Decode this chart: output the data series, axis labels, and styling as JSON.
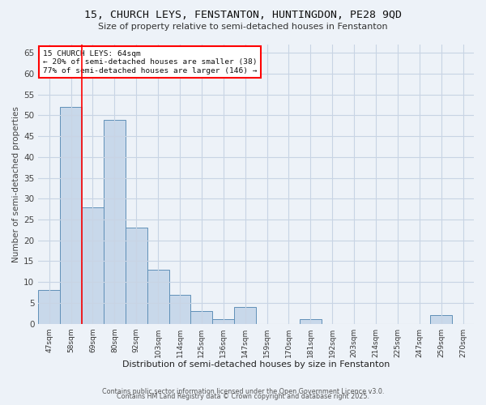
{
  "title1": "15, CHURCH LEYS, FENSTANTON, HUNTINGDON, PE28 9QD",
  "title2": "Size of property relative to semi-detached houses in Fenstanton",
  "xlabel": "Distribution of semi-detached houses by size in Fenstanton",
  "ylabel": "Number of semi-detached properties",
  "bins": [
    "47sqm",
    "58sqm",
    "69sqm",
    "80sqm",
    "92sqm",
    "103sqm",
    "114sqm",
    "125sqm",
    "136sqm",
    "147sqm",
    "159sqm",
    "170sqm",
    "181sqm",
    "192sqm",
    "203sqm",
    "214sqm",
    "225sqm",
    "247sqm",
    "259sqm",
    "270sqm"
  ],
  "values": [
    8,
    52,
    28,
    49,
    23,
    13,
    7,
    3,
    1,
    4,
    0,
    0,
    1,
    0,
    0,
    0,
    0,
    0,
    2,
    0
  ],
  "bar_color": "#c8d8ea",
  "bar_edge_color": "#6090b8",
  "bar_edge_width": 0.7,
  "grid_color": "#c8d4e4",
  "background_color": "#edf2f8",
  "red_line_x": 1.5,
  "annotation_title": "15 CHURCH LEYS: 64sqm",
  "annotation_line1": "← 20% of semi-detached houses are smaller (38)",
  "annotation_line2": "77% of semi-detached houses are larger (146) →",
  "footer1": "Contains HM Land Registry data © Crown copyright and database right 2025.",
  "footer2": "Contains public sector information licensed under the Open Government Licence v3.0.",
  "ylim": [
    0,
    67
  ],
  "yticks": [
    0,
    5,
    10,
    15,
    20,
    25,
    30,
    35,
    40,
    45,
    50,
    55,
    60,
    65
  ]
}
